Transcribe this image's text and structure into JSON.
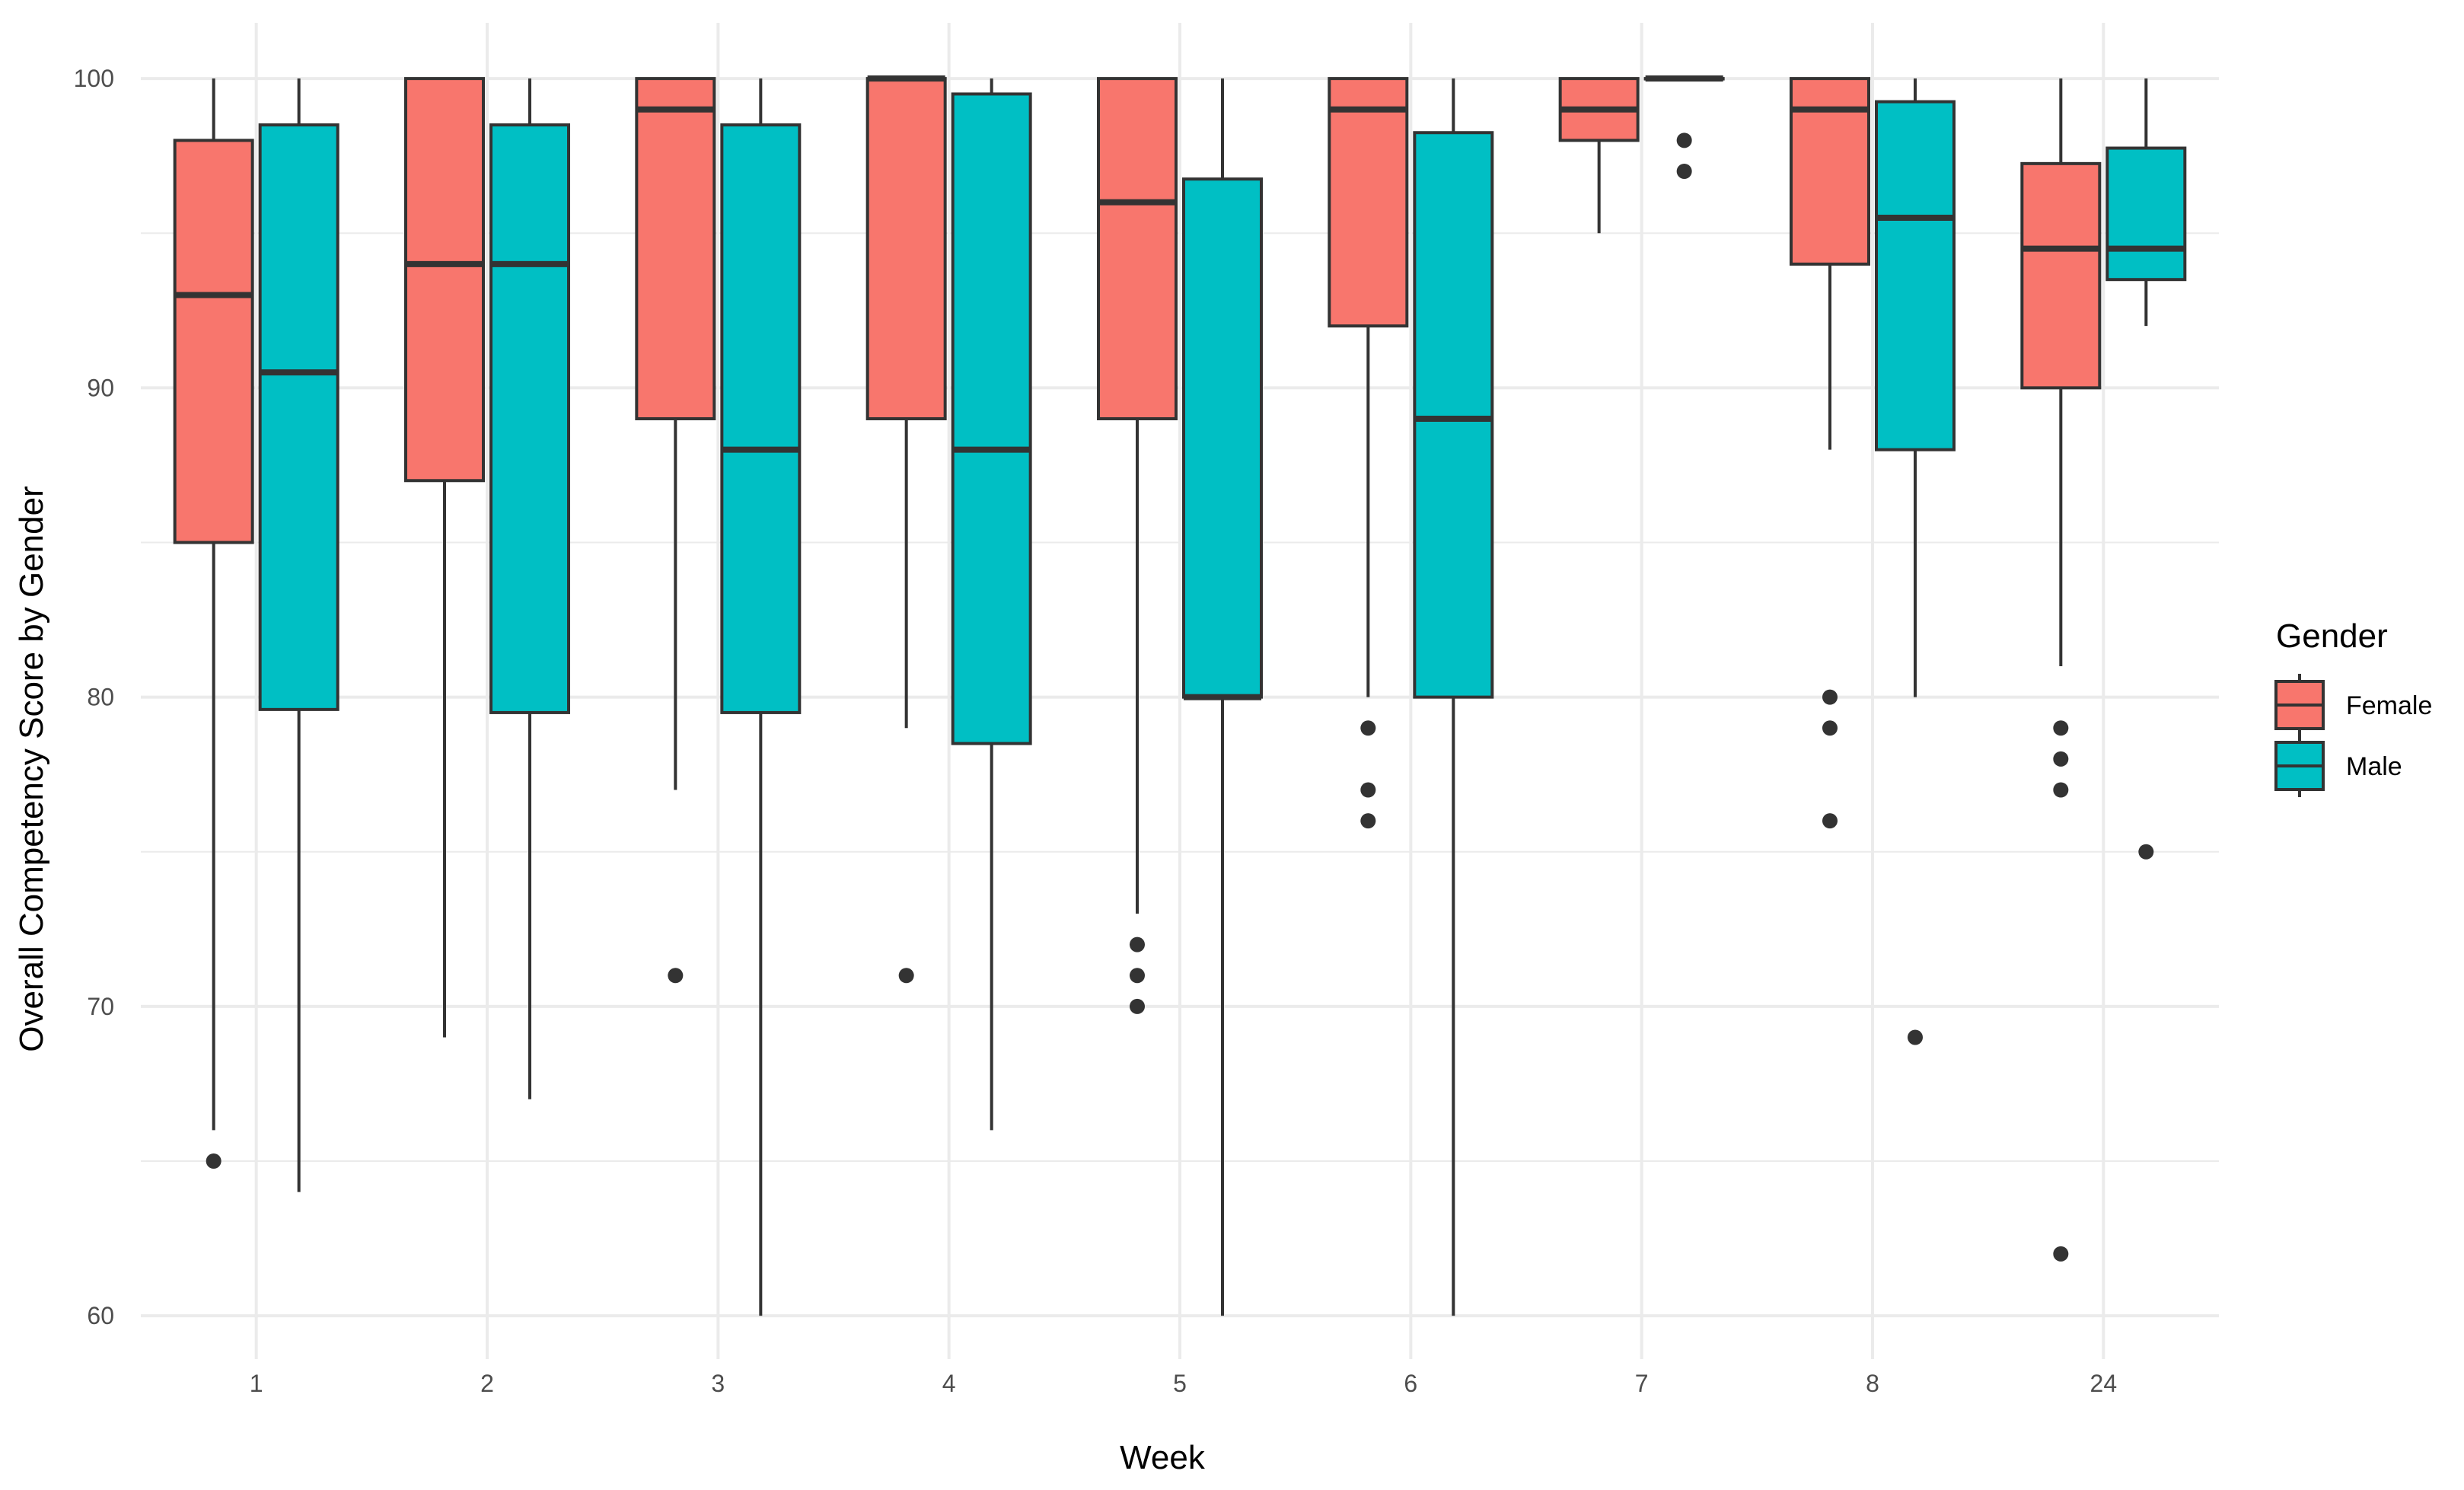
{
  "chart_data": {
    "type": "boxplot",
    "xlabel": "Week",
    "ylabel": "Overall Competency Score by Gender",
    "ylim": [
      58.6,
      101.8
    ],
    "y_ticks": [
      60,
      70,
      80,
      90,
      100
    ],
    "grid": true,
    "legend": {
      "title": "Gender",
      "position": "right"
    },
    "categories": [
      "1",
      "2",
      "3",
      "4",
      "5",
      "6",
      "7",
      "8",
      "24"
    ],
    "colors": {
      "Female": "#f8766d",
      "Male": "#00bfc4",
      "outline": "#333333",
      "grid": "#ebebeb"
    },
    "series": [
      {
        "name": "Female",
        "boxes": [
          {
            "whisker_low": 66,
            "q1": 85,
            "median": 93,
            "q3": 98,
            "whisker_high": 100,
            "outliers": [
              65
            ]
          },
          {
            "whisker_low": 69,
            "q1": 87,
            "median": 94,
            "q3": 100,
            "whisker_high": 100,
            "outliers": []
          },
          {
            "whisker_low": 77,
            "q1": 89,
            "median": 99,
            "q3": 100,
            "whisker_high": 100,
            "outliers": [
              71
            ]
          },
          {
            "whisker_low": 79,
            "q1": 89,
            "median": 100,
            "q3": 100,
            "whisker_high": 100,
            "outliers": [
              71
            ]
          },
          {
            "whisker_low": 73,
            "q1": 89,
            "median": 96,
            "q3": 100,
            "whisker_high": 100,
            "outliers": [
              72,
              71,
              70
            ]
          },
          {
            "whisker_low": 80,
            "q1": 92,
            "median": 99,
            "q3": 100,
            "whisker_high": 100,
            "outliers": [
              79,
              77,
              76
            ]
          },
          {
            "whisker_low": 95,
            "q1": 98,
            "median": 99,
            "q3": 100,
            "whisker_high": 100,
            "outliers": []
          },
          {
            "whisker_low": 88,
            "q1": 94,
            "median": 99,
            "q3": 100,
            "whisker_high": 100,
            "outliers": [
              80,
              79,
              76
            ]
          },
          {
            "whisker_low": 81,
            "q1": 90,
            "median": 94.5,
            "q3": 97.25,
            "whisker_high": 100,
            "outliers": [
              79,
              78,
              77,
              62
            ]
          }
        ]
      },
      {
        "name": "Male",
        "boxes": [
          {
            "whisker_low": 64,
            "q1": 79.6,
            "median": 90.5,
            "q3": 98.5,
            "whisker_high": 100,
            "outliers": []
          },
          {
            "whisker_low": 67,
            "q1": 79.5,
            "median": 94,
            "q3": 98.5,
            "whisker_high": 100,
            "outliers": []
          },
          {
            "whisker_low": 60,
            "q1": 79.5,
            "median": 88,
            "q3": 98.5,
            "whisker_high": 100,
            "outliers": []
          },
          {
            "whisker_low": 66,
            "q1": 78.5,
            "median": 88,
            "q3": 99.5,
            "whisker_high": 100,
            "outliers": []
          },
          {
            "whisker_low": 60,
            "q1": 80,
            "median": 80,
            "q3": 96.75,
            "whisker_high": 100,
            "outliers": []
          },
          {
            "whisker_low": 60,
            "q1": 80,
            "median": 89,
            "q3": 98.25,
            "whisker_high": 100,
            "outliers": []
          },
          {
            "whisker_low": 100,
            "q1": 100,
            "median": 100,
            "q3": 100,
            "whisker_high": 100,
            "outliers": [
              98,
              97
            ]
          },
          {
            "whisker_low": 80,
            "q1": 88,
            "median": 95.5,
            "q3": 99.25,
            "whisker_high": 100,
            "outliers": [
              69
            ]
          },
          {
            "whisker_low": 92,
            "q1": 93.5,
            "median": 94.5,
            "q3": 97.75,
            "whisker_high": 100,
            "outliers": [
              75
            ]
          }
        ]
      }
    ]
  }
}
